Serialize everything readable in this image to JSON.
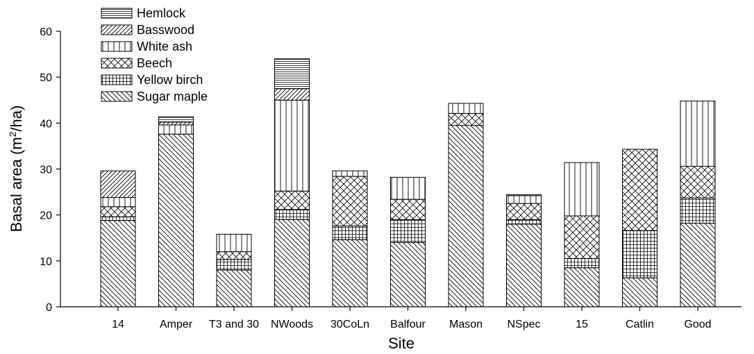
{
  "chart_data": {
    "type": "bar",
    "stacked": true,
    "categories": [
      "14",
      "Amper",
      "T3 and 30",
      "NWoods",
      "30CoLn",
      "Balfour",
      "Mason",
      "NSpec",
      "15",
      "Catlin",
      "Good"
    ],
    "series": [
      {
        "name": "Sugar maple",
        "pattern": "diag-down",
        "values": [
          18.8,
          37.6,
          8.0,
          19.0,
          14.6,
          14.0,
          39.5,
          18.0,
          8.5,
          6.3,
          18.2
        ]
      },
      {
        "name": "Yellow birch",
        "pattern": "grid",
        "values": [
          0.8,
          0.0,
          2.3,
          2.2,
          3.0,
          5.0,
          0.0,
          1.0,
          2.0,
          10.3,
          5.5
        ]
      },
      {
        "name": "Beech",
        "pattern": "cross",
        "values": [
          2.2,
          0.0,
          1.7,
          4.0,
          10.8,
          4.4,
          2.6,
          3.5,
          9.3,
          17.7,
          6.9
        ]
      },
      {
        "name": "White ash",
        "pattern": "vertical",
        "values": [
          2.0,
          2.0,
          3.8,
          19.8,
          1.2,
          4.8,
          2.2,
          1.7,
          11.6,
          0.0,
          14.2
        ]
      },
      {
        "name": "Basswood",
        "pattern": "diag-up",
        "values": [
          5.8,
          0.6,
          0.0,
          2.5,
          0.0,
          0.0,
          0.0,
          0.0,
          0.0,
          0.0,
          0.0
        ]
      },
      {
        "name": "Hemlock",
        "pattern": "horizontal",
        "values": [
          0.0,
          1.2,
          0.0,
          6.5,
          0.0,
          0.0,
          0.0,
          0.2,
          0.0,
          0.0,
          0.0
        ]
      }
    ],
    "title": "",
    "xlabel": "Site",
    "ylabel": "Basal area (m²/ha)",
    "ylabel_parts": {
      "before": "Basal area (m",
      "sup": "2",
      "after": "/ha)"
    },
    "ylim": [
      0,
      60
    ],
    "yticks": [
      0,
      10,
      20,
      30,
      40,
      50,
      60
    ],
    "legend_order": [
      "Hemlock",
      "Basswood",
      "White ash",
      "Beech",
      "Yellow birch",
      "Sugar maple"
    ],
    "legend_position": "top-left",
    "grid": false
  }
}
